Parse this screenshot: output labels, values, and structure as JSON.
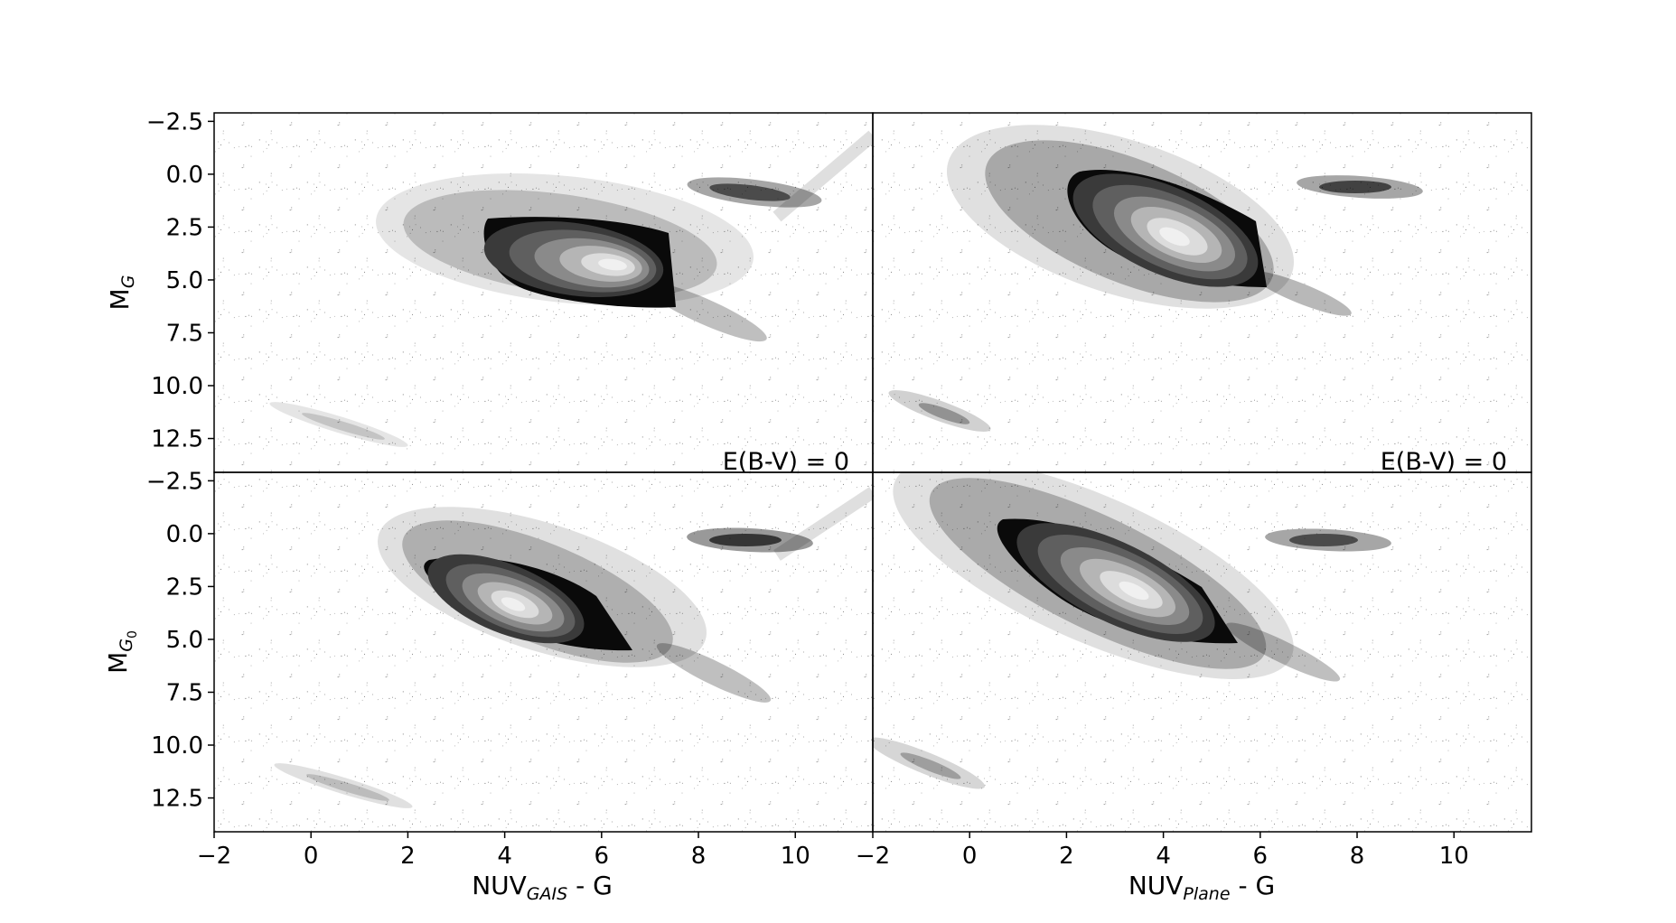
{
  "figure": {
    "background": "#ffffff",
    "ink": "#000000"
  },
  "chart_data": [
    {
      "panel": "top-left",
      "type": "heatmap",
      "style": "scatter-density with filled grayscale contours (dark outer → light core)",
      "xlabel": {
        "main": "",
        "sub": ""
      },
      "ylabel": {
        "main": "M",
        "sub": "G"
      },
      "annotation": "E(B-V) = 0",
      "xlim": [
        -2,
        11.6
      ],
      "ylim": [
        14.1,
        -2.9
      ],
      "xticks": [],
      "yticks": [
        "−2.5",
        "0.0",
        "2.5",
        "5.0",
        "7.5",
        "10.0",
        "12.5"
      ],
      "ytick_values": [
        -2.5,
        0,
        2.5,
        5,
        7.5,
        10,
        12.5
      ],
      "features": [
        {
          "feature": "main sequence core",
          "x": 5.6,
          "y": 4.0,
          "x_range": [
            2.5,
            7.6
          ],
          "y_range": [
            1.9,
            6.3
          ]
        },
        {
          "feature": "red clump",
          "x": 8.6,
          "y": 0.8
        },
        {
          "feature": "white dwarf sequence",
          "x_range": [
            -1,
            2
          ],
          "y_range": [
            11.0,
            13.0
          ]
        }
      ]
    },
    {
      "panel": "top-right",
      "type": "heatmap",
      "style": "scatter-density with filled grayscale contours (dark outer → light core)",
      "xlabel": {
        "main": "",
        "sub": ""
      },
      "ylabel": {
        "main": "",
        "sub": ""
      },
      "annotation": "E(B-V) = 0",
      "xlim": [
        -2,
        11.6
      ],
      "ylim": [
        14.1,
        -2.9
      ],
      "xticks": [],
      "yticks": [],
      "features": [
        {
          "feature": "main sequence core",
          "x": 4.0,
          "y": 3.0,
          "x_range": [
            0.8,
            6.4
          ],
          "y_range": [
            0.0,
            5.6
          ]
        },
        {
          "feature": "red clump",
          "x": 8.0,
          "y": 0.6
        },
        {
          "feature": "white dwarf sequence",
          "x_range": [
            -2,
            0.5
          ],
          "y_range": [
            10.0,
            12.0
          ]
        }
      ]
    },
    {
      "panel": "bottom-left",
      "type": "heatmap",
      "style": "scatter-density with filled grayscale contours (dark outer → light core)",
      "xlabel": {
        "main": "NUV",
        "sub": "GAIS",
        "tail": " - G"
      },
      "ylabel": {
        "main": "M",
        "sub": "G",
        "subsub": "0"
      },
      "annotation": "",
      "xlim": [
        -2,
        11.6
      ],
      "ylim": [
        14.1,
        -2.9
      ],
      "xticks": [
        "−2",
        "0",
        "2",
        "4",
        "6",
        "8",
        "10"
      ],
      "xtick_values": [
        -2,
        0,
        2,
        4,
        6,
        8,
        10
      ],
      "yticks": [
        "−2.5",
        "0.0",
        "2.5",
        "5.0",
        "7.5",
        "10.0",
        "12.5"
      ],
      "ytick_values": [
        -2.5,
        0,
        2.5,
        5,
        7.5,
        10,
        12.5
      ],
      "features": [
        {
          "feature": "main sequence core",
          "x": 4.5,
          "y": 3.2,
          "x_range": [
            2.4,
            7.2
          ],
          "y_range": [
            0.8,
            5.8
          ]
        },
        {
          "feature": "red clump",
          "x": 8.1,
          "y": 0.2
        },
        {
          "feature": "white dwarf sequence",
          "x_range": [
            -1,
            2
          ],
          "y_range": [
            10.8,
            12.8
          ]
        }
      ]
    },
    {
      "panel": "bottom-right",
      "type": "heatmap",
      "style": "scatter-density with filled grayscale contours (dark outer → light core)",
      "xlabel": {
        "main": "NUV",
        "sub": "Plane",
        "tail": " - G"
      },
      "ylabel": {
        "main": "",
        "sub": ""
      },
      "annotation": "",
      "xlim": [
        -2,
        11.6
      ],
      "ylim": [
        14.1,
        -2.9
      ],
      "xticks": [
        "−2",
        "0",
        "2",
        "4",
        "6",
        "8",
        "10"
      ],
      "xtick_values": [
        -2,
        0,
        2,
        4,
        6,
        8,
        10
      ],
      "yticks": [],
      "features": [
        {
          "feature": "main sequence core",
          "x": 3.5,
          "y": 2.6,
          "x_range": [
            0.3,
            6.0
          ],
          "y_range": [
            -0.6,
            5.2
          ]
        },
        {
          "feature": "red clump",
          "x": 7.6,
          "y": 0.2
        },
        {
          "feature": "white dwarf sequence",
          "x_range": [
            -2,
            0.5
          ],
          "y_range": [
            9.8,
            11.8
          ]
        }
      ]
    }
  ]
}
